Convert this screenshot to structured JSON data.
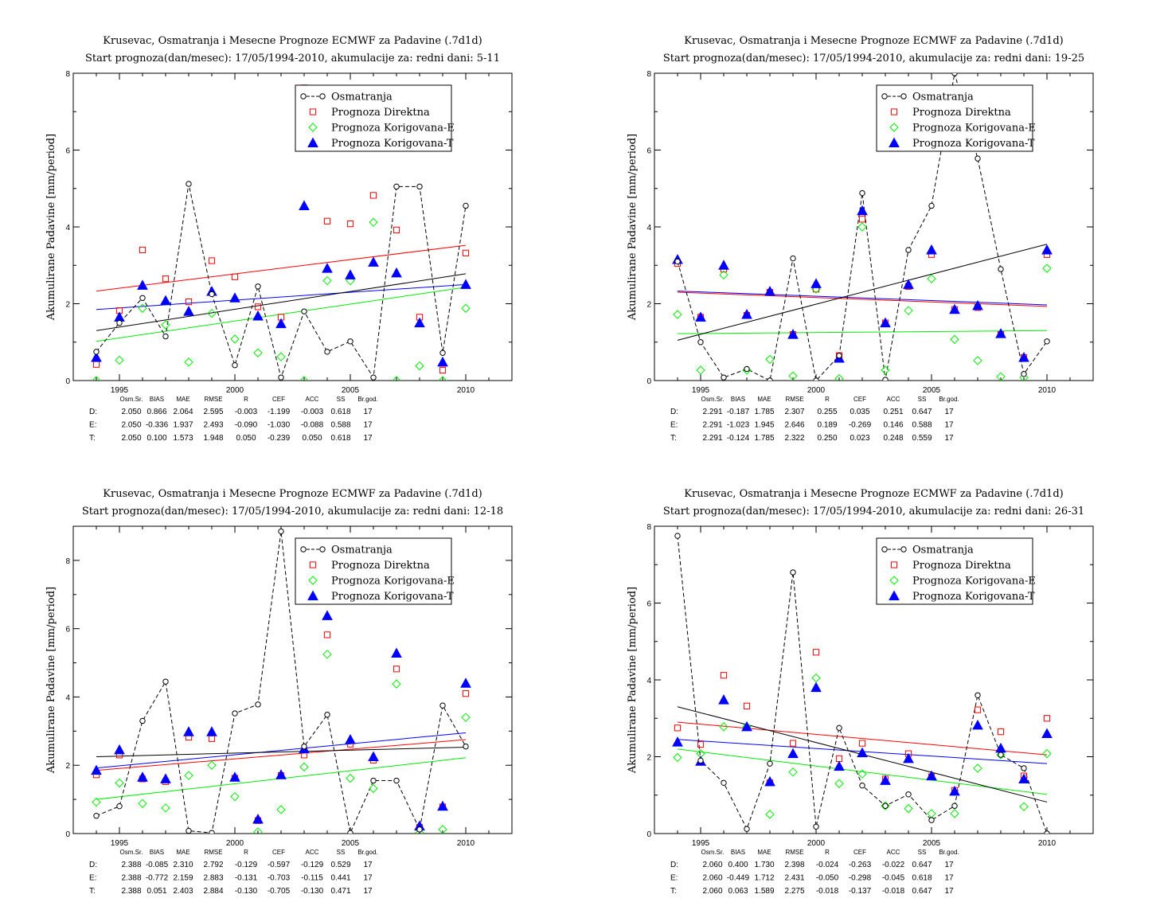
{
  "legend": {
    "items": [
      {
        "key": "obs",
        "label": "Osmatranja"
      },
      {
        "key": "D",
        "label": "Prognoza Direktna"
      },
      {
        "key": "E",
        "label": "Prognoza Korigovana-E"
      },
      {
        "key": "T",
        "label": "Prognoza Korigovana-T"
      }
    ],
    "position": "top-right"
  },
  "stats_headers": [
    "Osm.Sr.",
    "BIAS",
    "MAE",
    "RMSE",
    "R",
    "CEF",
    "ACC",
    "SS",
    "Br.god."
  ],
  "colors": {
    "obs": "#000000",
    "D": "#ff0000",
    "E": "#00ee00",
    "T": "#0000ff"
  },
  "chart_data": [
    {
      "type": "scatter",
      "title": "Krusevac, Osmatranja i Mesecne Prognoze ECMWF za Padavine (.7d1d)",
      "subtitle": "Start prognoza(dan/mesec): 17/05/1994-2010, akumulacije za: redni dani: 5-11",
      "ylabel": "Akumulirane Padavine [mm/period]",
      "xlim": [
        1993,
        2012
      ],
      "ylim": [
        0,
        8
      ],
      "x_ticks": [
        1995,
        2000,
        2005,
        2010
      ],
      "y_ticks": [
        0,
        2,
        4,
        6,
        8
      ],
      "grid": false,
      "x": [
        1994,
        1995,
        1996,
        1997,
        1998,
        1999,
        2000,
        2001,
        2002,
        2003,
        2004,
        2005,
        2006,
        2007,
        2008,
        2009,
        2010
      ],
      "series": [
        {
          "name": "Osmatranja",
          "key": "obs",
          "values": [
            0.75,
            1.5,
            2.15,
            1.15,
            5.12,
            2.25,
            0.4,
            2.45,
            0.08,
            1.8,
            0.75,
            1.02,
            0.08,
            5.05,
            5.05,
            0.72,
            4.55
          ],
          "trend": [
            1.3,
            2.78
          ]
        },
        {
          "name": "Prognoza Direktna",
          "key": "D",
          "values": [
            0.42,
            1.82,
            3.4,
            2.65,
            2.05,
            3.12,
            2.7,
            1.92,
            1.65,
            7.62,
            4.15,
            4.08,
            4.82,
            3.92,
            1.65,
            0.27,
            3.32
          ],
          "trend": [
            2.33,
            3.52
          ]
        },
        {
          "name": "Prognoza Korigovana-E",
          "key": "E",
          "values": [
            0.0,
            0.53,
            1.88,
            1.45,
            0.48,
            1.75,
            1.08,
            0.72,
            0.62,
            0.0,
            2.6,
            2.6,
            4.12,
            0.0,
            0.38,
            0.0,
            1.88
          ],
          "trend": [
            1.02,
            2.43
          ]
        },
        {
          "name": "Prognoza Korigovana-T",
          "key": "T",
          "values": [
            0.6,
            1.65,
            2.48,
            2.08,
            1.8,
            2.32,
            2.15,
            1.68,
            1.48,
            4.55,
            2.92,
            2.75,
            3.08,
            2.8,
            1.5,
            0.48,
            2.5
          ],
          "trend": [
            1.85,
            2.5
          ]
        }
      ],
      "stats": [
        {
          "label": "D:",
          "key": "D",
          "values": [
            "2.050",
            "0.866",
            "2.064",
            "2.595",
            "-0.003",
            "-1.199",
            "-0.003",
            "0.618",
            "17"
          ]
        },
        {
          "label": "E:",
          "key": "E",
          "values": [
            "2.050",
            "-0.336",
            "1.937",
            "2.493",
            "-0.090",
            "-1.030",
            "-0.088",
            "0.588",
            "17"
          ]
        },
        {
          "label": "T:",
          "key": "T",
          "values": [
            "2.050",
            "0.100",
            "1.573",
            "1.948",
            "0.050",
            "-0.239",
            "0.050",
            "0.618",
            "17"
          ]
        }
      ]
    },
    {
      "type": "scatter",
      "title": "Krusevac, Osmatranja i Mesecne Prognoze ECMWF za Padavine (.7d1d)",
      "subtitle": "Start prognoza(dan/mesec): 17/05/1994-2010, akumulacije za: redni dani: 19-25",
      "ylabel": "Akumulirane Padavine [mm/period]",
      "xlim": [
        1993,
        2012
      ],
      "ylim": [
        0,
        8
      ],
      "x_ticks": [
        1995,
        2000,
        2005,
        2010
      ],
      "y_ticks": [
        0,
        2,
        4,
        6,
        8
      ],
      "grid": false,
      "x": [
        1994,
        1995,
        1996,
        1997,
        1998,
        1999,
        2000,
        2001,
        2002,
        2003,
        2004,
        2005,
        2006,
        2007,
        2008,
        2009,
        2010
      ],
      "series": [
        {
          "name": "Osmatranja",
          "key": "obs",
          "values": [
            3.1,
            1.0,
            0.08,
            0.3,
            0.0,
            3.18,
            0.0,
            0.65,
            4.88,
            0.02,
            3.4,
            4.55,
            8.0,
            5.78,
            2.9,
            0.17,
            1.02
          ],
          "trend": [
            1.05,
            3.55
          ]
        },
        {
          "name": "Prognoza Direktna",
          "key": "D",
          "values": [
            3.05,
            1.65,
            2.9,
            1.7,
            2.3,
            1.2,
            2.38,
            0.65,
            4.2,
            1.5,
            2.45,
            3.28,
            1.85,
            1.9,
            1.2,
            0.6,
            3.28
          ],
          "trend": [
            2.3,
            1.93
          ]
        },
        {
          "name": "Prognoza Korigovana-E",
          "key": "E",
          "values": [
            1.72,
            0.27,
            2.75,
            0.27,
            0.55,
            0.12,
            2.38,
            0.05,
            4.0,
            0.27,
            1.82,
            2.65,
            1.07,
            0.52,
            0.1,
            0.08,
            2.92
          ],
          "trend": [
            1.22,
            1.3
          ]
        },
        {
          "name": "Prognoza Korigovana-T",
          "key": "T",
          "values": [
            3.15,
            1.65,
            3.0,
            1.72,
            2.32,
            1.2,
            2.52,
            0.58,
            4.42,
            1.5,
            2.5,
            3.4,
            1.85,
            1.95,
            1.22,
            0.6,
            3.4
          ],
          "trend": [
            2.33,
            1.97
          ]
        }
      ],
      "stats": [
        {
          "label": "D:",
          "key": "D",
          "values": [
            "2.291",
            "-0.187",
            "1.785",
            "2.307",
            "0.255",
            "0.035",
            "0.251",
            "0.647",
            "17"
          ]
        },
        {
          "label": "E:",
          "key": "E",
          "values": [
            "2.291",
            "-1.023",
            "1.945",
            "2.646",
            "0.189",
            "-0.269",
            "0.146",
            "0.588",
            "17"
          ]
        },
        {
          "label": "T:",
          "key": "T",
          "values": [
            "2.291",
            "-0.124",
            "1.785",
            "2.322",
            "0.250",
            "0.023",
            "0.248",
            "0.559",
            "17"
          ]
        }
      ]
    },
    {
      "type": "scatter",
      "title": "Krusevac, Osmatranja i Mesecne Prognoze ECMWF za Padavine (.7d1d)",
      "subtitle": "Start prognoza(dan/mesec): 17/05/1994-2010, akumulacije za: redni dani: 12-18",
      "ylabel": "Akumulirane Padavine [mm/period]",
      "xlim": [
        1993,
        2012
      ],
      "ylim": [
        0,
        9
      ],
      "x_ticks": [
        1995,
        2000,
        2005,
        2010
      ],
      "y_ticks": [
        0,
        2,
        4,
        6,
        8
      ],
      "grid": false,
      "x": [
        1994,
        1995,
        1996,
        1997,
        1998,
        1999,
        2000,
        2001,
        2002,
        2003,
        2004,
        2005,
        2006,
        2007,
        2008,
        2009,
        2010
      ],
      "series": [
        {
          "name": "Osmatranja",
          "key": "obs",
          "values": [
            0.52,
            0.8,
            3.3,
            4.45,
            0.08,
            0.02,
            3.52,
            3.78,
            8.85,
            2.55,
            3.48,
            0.02,
            1.55,
            1.55,
            0.12,
            3.75,
            2.55
          ],
          "trend": [
            2.25,
            2.53
          ]
        },
        {
          "name": "Prognoza Direktna",
          "key": "D",
          "values": [
            1.72,
            2.3,
            1.6,
            1.52,
            2.82,
            2.78,
            1.62,
            0.38,
            1.7,
            2.3,
            5.82,
            2.62,
            2.15,
            4.82,
            0.18,
            0.78,
            4.1
          ],
          "trend": [
            1.85,
            2.75
          ]
        },
        {
          "name": "Prognoza Korigovana-E",
          "key": "E",
          "values": [
            0.92,
            1.48,
            0.88,
            0.75,
            1.7,
            2.0,
            1.08,
            0.05,
            0.7,
            1.95,
            5.25,
            1.62,
            1.32,
            4.38,
            0.02,
            0.12,
            3.4
          ],
          "trend": [
            1.0,
            2.22
          ]
        },
        {
          "name": "Prognoza Korigovana-T",
          "key": "T",
          "values": [
            1.85,
            2.45,
            1.65,
            1.6,
            2.98,
            2.98,
            1.65,
            0.42,
            1.72,
            2.48,
            6.38,
            2.75,
            2.25,
            5.28,
            0.22,
            0.8,
            4.4
          ],
          "trend": [
            1.92,
            2.95
          ]
        }
      ],
      "stats": [
        {
          "label": "D:",
          "key": "D",
          "values": [
            "2.388",
            "-0.085",
            "2.310",
            "2.792",
            "-0.129",
            "-0.597",
            "-0.129",
            "0.529",
            "17"
          ]
        },
        {
          "label": "E:",
          "key": "E",
          "values": [
            "2.388",
            "-0.772",
            "2.159",
            "2.883",
            "-0.131",
            "-0.703",
            "-0.115",
            "0.441",
            "17"
          ]
        },
        {
          "label": "T:",
          "key": "T",
          "values": [
            "2.388",
            "0.051",
            "2.403",
            "2.884",
            "-0.130",
            "-0.705",
            "-0.130",
            "0.471",
            "17"
          ]
        }
      ]
    },
    {
      "type": "scatter",
      "title": "Krusevac, Osmatranja i Mesecne Prognoze ECMWF za Padavine (.7d1d)",
      "subtitle": "Start prognoza(dan/mesec): 17/05/1994-2010, akumulacije za: redni dani: 26-31",
      "ylabel": "Akumulirane Padavine [mm/period]",
      "xlim": [
        1993,
        2012
      ],
      "ylim": [
        0,
        8
      ],
      "x_ticks": [
        1995,
        2000,
        2005,
        2010
      ],
      "y_ticks": [
        0,
        2,
        4,
        6,
        8
      ],
      "grid": false,
      "x": [
        1994,
        1995,
        1996,
        1997,
        1998,
        1999,
        2000,
        2001,
        2002,
        2003,
        2004,
        2005,
        2006,
        2007,
        2008,
        2009,
        2010
      ],
      "series": [
        {
          "name": "Osmatranja",
          "key": "obs",
          "values": [
            7.75,
            1.9,
            1.32,
            0.12,
            1.82,
            6.8,
            0.18,
            2.75,
            1.25,
            0.72,
            1.02,
            0.35,
            0.72,
            3.6,
            2.05,
            1.7,
            0.0
          ],
          "trend": [
            3.3,
            0.82
          ]
        },
        {
          "name": "Prognoza Direktna",
          "key": "D",
          "values": [
            2.75,
            2.32,
            4.12,
            3.32,
            1.32,
            2.35,
            4.72,
            1.95,
            2.35,
            1.42,
            2.08,
            1.48,
            1.12,
            3.22,
            2.65,
            1.5,
            3.0
          ],
          "trend": [
            2.9,
            2.05
          ]
        },
        {
          "name": "Prognoza Korigovana-E",
          "key": "E",
          "values": [
            1.98,
            2.08,
            2.78,
            2.78,
            0.5,
            1.6,
            4.05,
            1.3,
            1.55,
            0.72,
            0.65,
            0.52,
            0.52,
            1.7,
            2.05,
            0.7,
            2.08
          ],
          "trend": [
            2.2,
            1.02
          ]
        },
        {
          "name": "Prognoza Korigovana-T",
          "key": "T",
          "values": [
            2.38,
            1.88,
            3.48,
            2.78,
            1.35,
            2.08,
            3.8,
            1.75,
            2.1,
            1.38,
            1.95,
            1.5,
            1.1,
            2.82,
            2.22,
            1.42,
            2.6
          ],
          "trend": [
            2.45,
            1.82
          ]
        }
      ],
      "stats": [
        {
          "label": "D:",
          "key": "D",
          "values": [
            "2.060",
            "0.400",
            "1.730",
            "2.398",
            "-0.024",
            "-0.263",
            "-0.022",
            "0.647",
            "17"
          ]
        },
        {
          "label": "E:",
          "key": "E",
          "values": [
            "2.060",
            "-0.449",
            "1.712",
            "2.431",
            "-0.050",
            "-0.298",
            "-0.045",
            "0.618",
            "17"
          ]
        },
        {
          "label": "T:",
          "key": "T",
          "values": [
            "2.060",
            "0.063",
            "1.589",
            "2.275",
            "-0.018",
            "-0.137",
            "-0.018",
            "0.647",
            "17"
          ]
        }
      ]
    }
  ]
}
